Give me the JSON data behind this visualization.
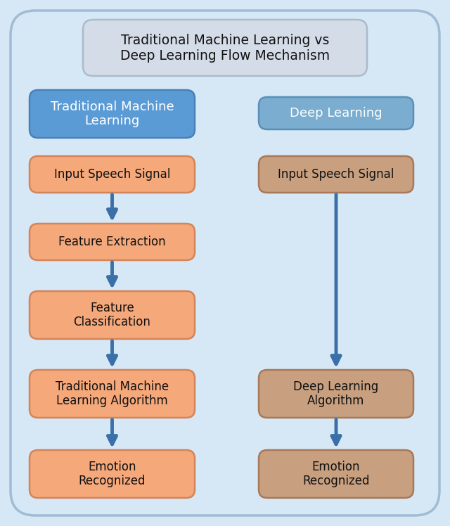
{
  "title": "Traditional Machine Learning vs\nDeep Learning Flow Mechanism",
  "title_box_color": "#d4dce8",
  "title_box_border": "#aabbcc",
  "title_text_color": "#111111",
  "background_color": "#d6e8f5",
  "outer_border_color": "#a0bcd4",
  "arrow_color": "#3a6fa8",
  "left_header_text": "Traditional Machine\nLearning",
  "left_header_bg": "#5b9bd5",
  "left_header_border": "#4a80b8",
  "left_header_text_color": "#ffffff",
  "right_header_text": "Deep Learning",
  "right_header_bg": "#7aadcf",
  "right_header_border": "#5a90b8",
  "right_header_text_color": "#ffffff",
  "left_boxes": [
    "Input Speech Signal",
    "Feature Extraction",
    "Feature\nClassification",
    "Traditional Machine\nLearning Algorithm",
    "Emotion\nRecognized"
  ],
  "right_boxes": [
    "Input Speech Signal",
    "Deep Learning\nAlgorithm",
    "Emotion\nRecognized"
  ],
  "left_box_bg": "#f5a87a",
  "left_box_border": "#d4845a",
  "right_box_bg": "#c8a080",
  "right_box_border": "#a87858",
  "box_text_color": "#111111",
  "font_size_title": 13.5,
  "font_size_header": 13,
  "font_size_box": 12
}
